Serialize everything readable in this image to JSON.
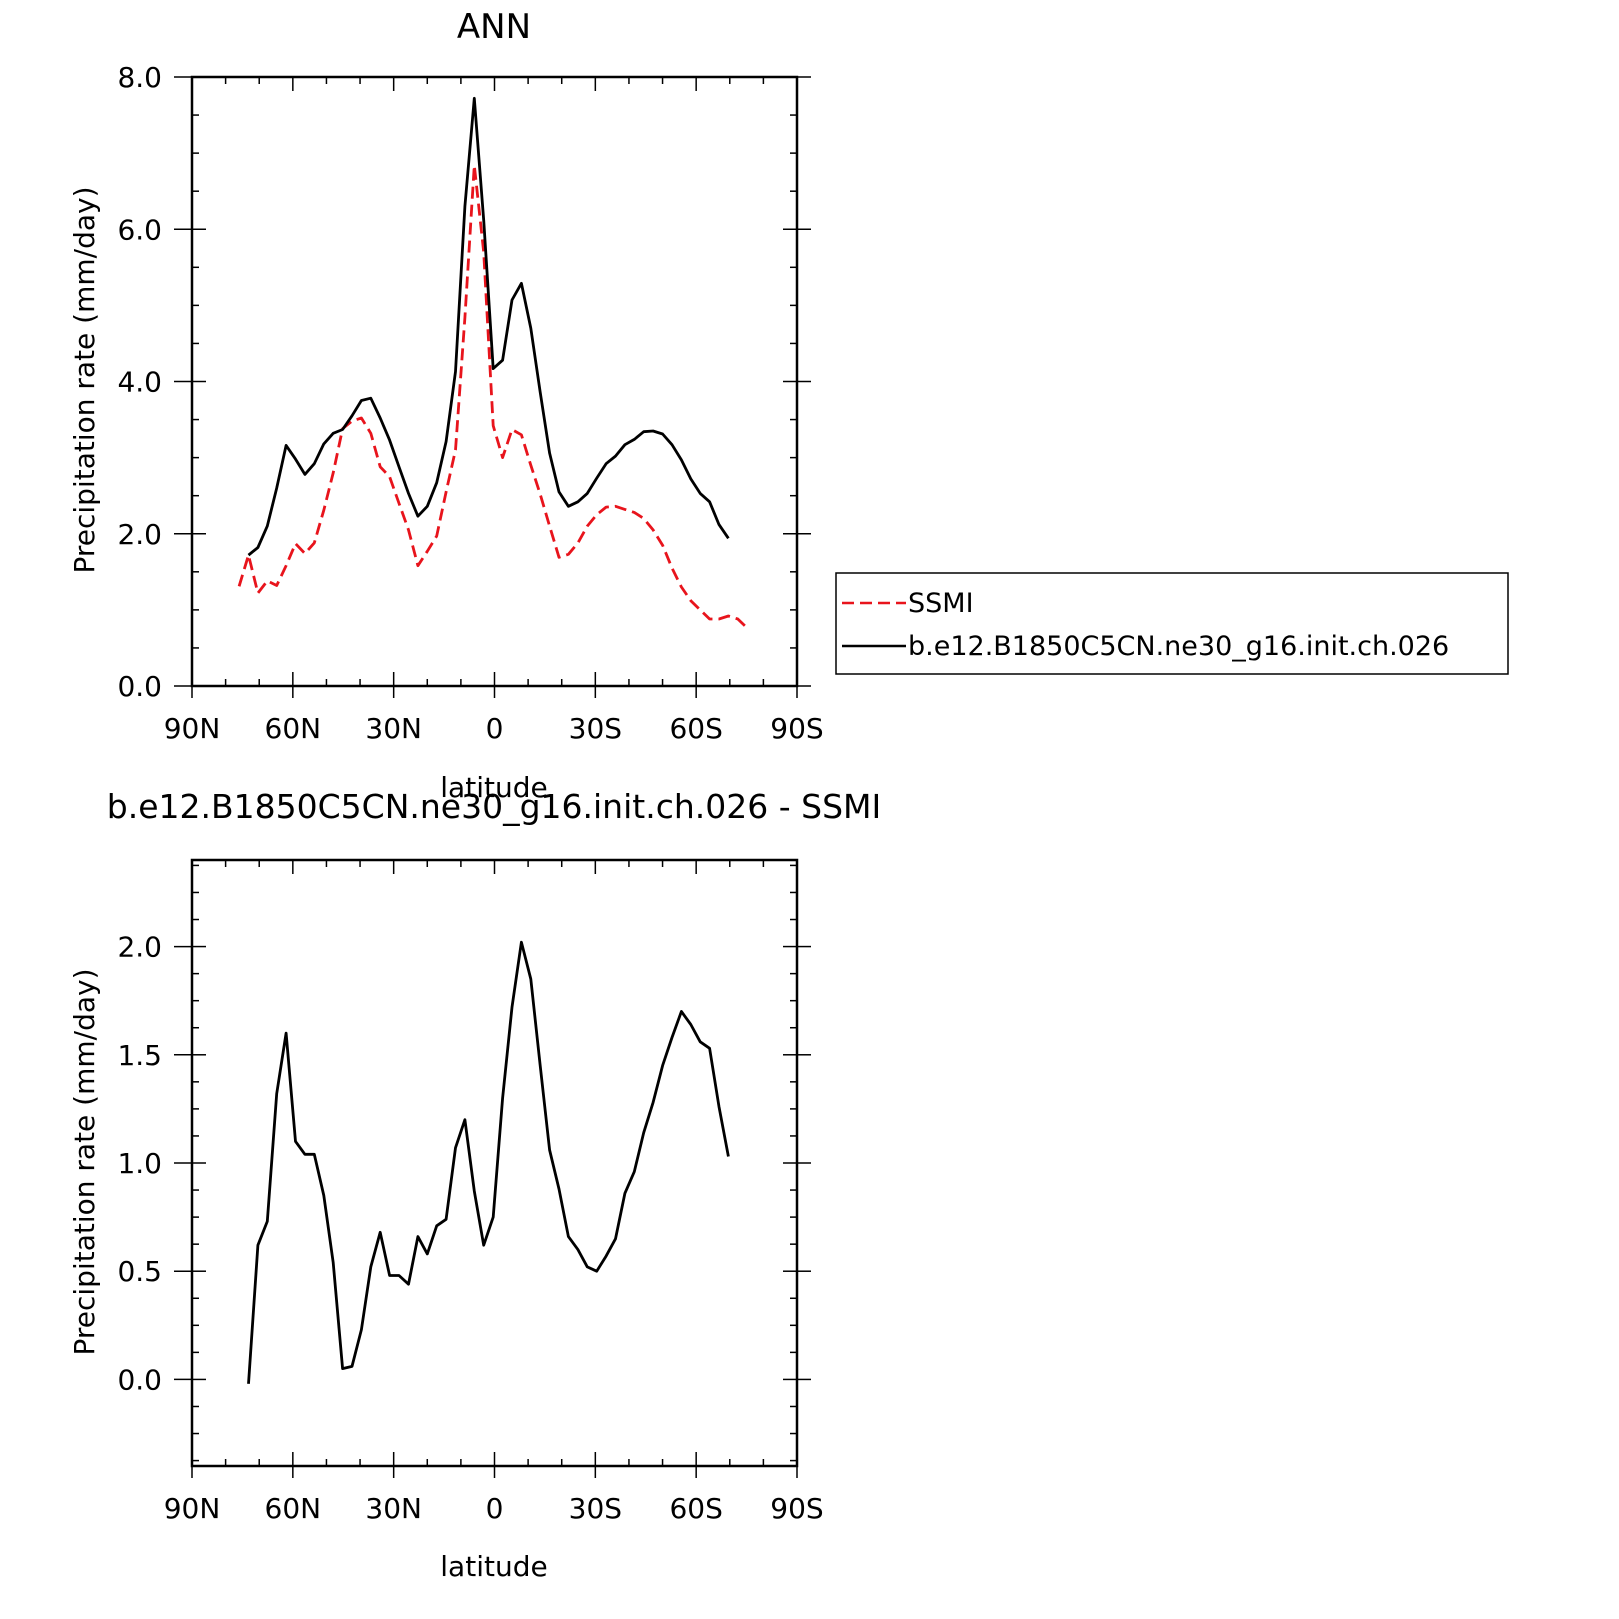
{
  "colors": {
    "ssmi": "#e8141c",
    "model": "#000000",
    "axis": "#000000"
  },
  "chart_data": [
    {
      "type": "line",
      "title": "ANN",
      "xlabel": "latitude",
      "ylabel": "Precipitation rate (mm/day)",
      "x_range": [
        90,
        -90
      ],
      "x_ticks": [
        90,
        60,
        30,
        0,
        -30,
        -60,
        -90
      ],
      "x_tick_labels": [
        "90N",
        "60N",
        "30N",
        "0",
        "30S",
        "60S",
        "90S"
      ],
      "ylim": [
        0,
        8
      ],
      "y_ticks": [
        0,
        2,
        4,
        6,
        8
      ],
      "y_tick_labels": [
        "0.0",
        "2.0",
        "4.0",
        "6.0",
        "8.0"
      ],
      "legend": {
        "placement": "right"
      },
      "series": [
        {
          "name": "SSMI",
          "color": "#e8141c",
          "dash": "dashed",
          "x": [
            76,
            73.2,
            70.4,
            67.6,
            64.8,
            62,
            59.2,
            56.4,
            53.6,
            50.8,
            48,
            45.2,
            42.4,
            39.6,
            36.8,
            34,
            31.2,
            28.4,
            25.6,
            22.8,
            20,
            17.2,
            14.4,
            11.6,
            8.8,
            6,
            3.2,
            0.4,
            -2.4,
            -5.2,
            -8,
            -10.8,
            -13.6,
            -16.4,
            -19.2,
            -22,
            -24.8,
            -27.6,
            -30.4,
            -33.2,
            -36,
            -38.8,
            -41.6,
            -44.4,
            -47.2,
            -50,
            -52.8,
            -55.6,
            -58.4,
            -61.2,
            -64,
            -66.8,
            -69.6,
            -72.4,
            -75.2
          ],
          "y": [
            1.31,
            1.72,
            1.22,
            1.38,
            1.32,
            1.58,
            1.87,
            1.74,
            1.88,
            2.31,
            2.8,
            3.38,
            3.48,
            3.52,
            3.32,
            2.88,
            2.75,
            2.4,
            2.05,
            1.58,
            1.77,
            1.97,
            2.55,
            3.1,
            4.84,
            6.84,
            5.7,
            3.42,
            3.0,
            3.37,
            3.3,
            2.9,
            2.52,
            2.1,
            1.69,
            1.73,
            1.88,
            2.1,
            2.25,
            2.35,
            2.36,
            2.32,
            2.28,
            2.2,
            2.05,
            1.85,
            1.55,
            1.3,
            1.12,
            1.0,
            0.88,
            0.88,
            0.92,
            0.88,
            0.76
          ]
        },
        {
          "name": "b.e12.B1850C5CN.ne30_g16.init.ch.026",
          "color": "#000000",
          "dash": "solid",
          "x": [
            73.2,
            70.4,
            67.6,
            64.8,
            62,
            59.2,
            56.4,
            53.6,
            50.8,
            48,
            45.2,
            42.4,
            39.6,
            36.8,
            34,
            31.2,
            28.4,
            25.6,
            22.8,
            20,
            17.2,
            14.4,
            11.6,
            8.8,
            6,
            3.2,
            0.4,
            -2.4,
            -5.2,
            -8,
            -10.8,
            -13.6,
            -16.4,
            -19.2,
            -22,
            -24.8,
            -27.6,
            -30.4,
            -33.2,
            -36,
            -38.8,
            -41.6,
            -44.4,
            -47.2,
            -50,
            -52.8,
            -55.6,
            -58.4,
            -61.2,
            -64,
            -66.8,
            -69.6
          ],
          "y": [
            1.72,
            1.82,
            2.1,
            2.6,
            3.16,
            2.98,
            2.78,
            2.92,
            3.18,
            3.32,
            3.37,
            3.55,
            3.75,
            3.78,
            3.52,
            3.23,
            2.88,
            2.53,
            2.23,
            2.36,
            2.67,
            3.21,
            4.13,
            6.3,
            7.72,
            6.12,
            4.17,
            4.28,
            5.07,
            5.29,
            4.7,
            3.86,
            3.06,
            2.55,
            2.36,
            2.42,
            2.53,
            2.73,
            2.92,
            3.02,
            3.17,
            3.24,
            3.34,
            3.35,
            3.31,
            3.17,
            2.97,
            2.72,
            2.53,
            2.42,
            2.12,
            1.94
          ]
        }
      ]
    },
    {
      "type": "line",
      "title": "b.e12.B1850C5CN.ne30_g16.init.ch.026 - SSMI",
      "xlabel": "latitude",
      "ylabel": "Precipitation rate (mm/day)",
      "x_range": [
        90,
        -90
      ],
      "x_ticks": [
        90,
        60,
        30,
        0,
        -30,
        -60,
        -90
      ],
      "x_tick_labels": [
        "90N",
        "60N",
        "30N",
        "0",
        "30S",
        "60S",
        "90S"
      ],
      "ylim": [
        -0.4,
        2.4
      ],
      "y_ticks": [
        0,
        0.5,
        1.0,
        1.5,
        2.0
      ],
      "y_tick_labels": [
        "0.0",
        "0.5",
        "1.0",
        "1.5",
        "2.0"
      ],
      "series": [
        {
          "color": "#000000",
          "dash": "solid",
          "x": [
            73.2,
            70.4,
            67.6,
            64.8,
            62,
            59.2,
            56.4,
            53.6,
            50.8,
            48,
            45.2,
            42.4,
            39.6,
            36.8,
            34,
            31.2,
            28.4,
            25.6,
            22.8,
            20,
            17.2,
            14.4,
            11.6,
            8.8,
            6,
            3.2,
            0.4,
            -2.4,
            -5.2,
            -8,
            -10.8,
            -13.6,
            -16.4,
            -19.2,
            -22,
            -24.8,
            -27.6,
            -30.4,
            -33.2,
            -36,
            -38.8,
            -41.6,
            -44.4,
            -47.2,
            -50,
            -52.8,
            -55.6,
            -58.4,
            -61.2,
            -64,
            -66.8,
            -69.6
          ],
          "y": [
            -0.02,
            0.62,
            0.73,
            1.32,
            1.6,
            1.1,
            1.04,
            1.04,
            0.85,
            0.54,
            0.05,
            0.06,
            0.23,
            0.52,
            0.68,
            0.48,
            0.48,
            0.44,
            0.66,
            0.58,
            0.71,
            0.74,
            1.07,
            1.2,
            0.87,
            0.62,
            0.75,
            1.3,
            1.72,
            2.02,
            1.85,
            1.45,
            1.06,
            0.88,
            0.66,
            0.6,
            0.52,
            0.5,
            0.57,
            0.65,
            0.86,
            0.96,
            1.14,
            1.28,
            1.45,
            1.58,
            1.7,
            1.64,
            1.56,
            1.53,
            1.26,
            1.03
          ]
        }
      ]
    }
  ]
}
